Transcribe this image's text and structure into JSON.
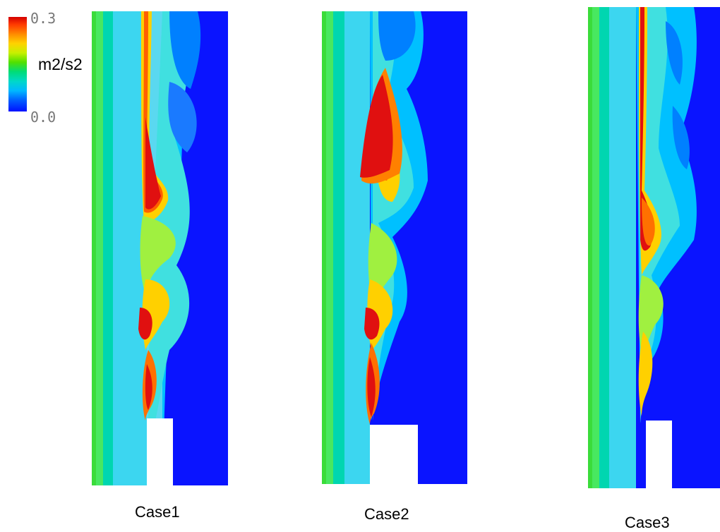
{
  "legend": {
    "max_label": "0.3",
    "min_label": "0.0",
    "unit": "m2/s2",
    "colors": [
      "#d40000",
      "#ff8a00",
      "#ffd200",
      "#50e000",
      "#00d8c8",
      "#00b8ff",
      "#0010ff"
    ]
  },
  "panels": [
    {
      "caption": "Case1"
    },
    {
      "caption": "Case2"
    },
    {
      "caption": "Case3"
    }
  ]
}
